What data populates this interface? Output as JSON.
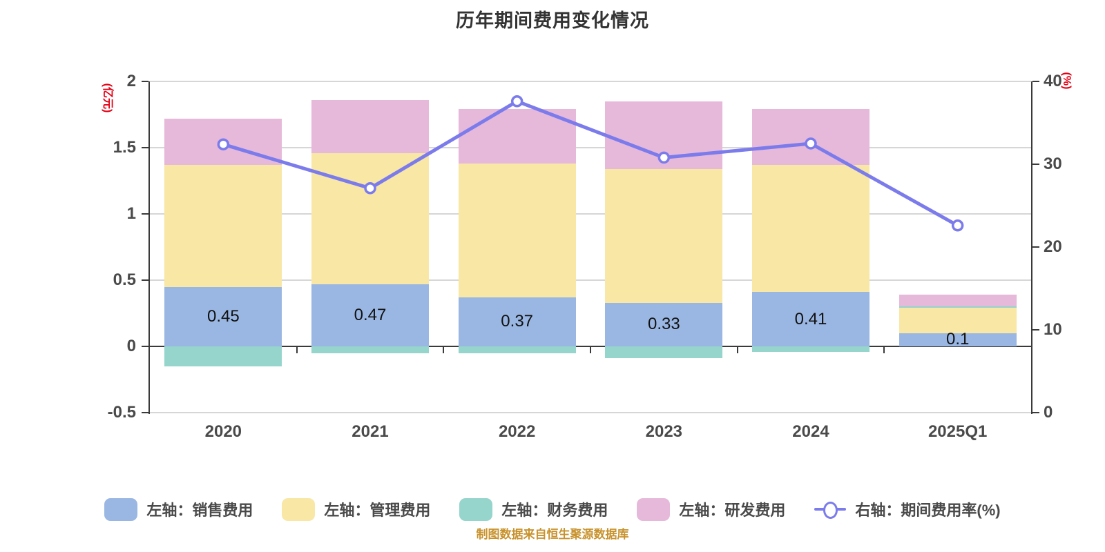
{
  "title": "历年期间费用变化情况",
  "source_note": "制图数据来自恒生聚源数据库",
  "left_axis": {
    "unit_label": "(亿元)",
    "min": -0.5,
    "max": 2,
    "ticks": [
      2,
      1.5,
      1,
      0.5,
      0,
      -0.5
    ],
    "tick_labels": [
      "2",
      "1.5",
      "1",
      "0.5",
      "0",
      "-0.5"
    ],
    "unit_color": "#e60014"
  },
  "right_axis": {
    "unit_label": "(%)",
    "min": 0,
    "max": 40,
    "ticks": [
      40,
      30,
      20,
      10,
      0
    ],
    "tick_labels": [
      "40",
      "30",
      "20",
      "10",
      "0"
    ],
    "unit_color": "#e60014"
  },
  "legend": [
    {
      "key": "sales_expense",
      "label": "左轴：销售费用",
      "marker": "bar",
      "color": "#9ab7e3"
    },
    {
      "key": "management_expense",
      "label": "左轴：管理费用",
      "marker": "bar",
      "color": "#f8e7a5"
    },
    {
      "key": "financial_expense",
      "label": "左轴：财务费用",
      "marker": "bar",
      "color": "#95d5cc"
    },
    {
      "key": "rd_expense",
      "label": "左轴：研发费用",
      "marker": "bar",
      "color": "#e6b8da"
    },
    {
      "key": "period_expense_rate",
      "label": "右轴：期间费用率(%)",
      "marker": "line",
      "color": "#7b7bec"
    }
  ],
  "chart_data": {
    "type": "bar",
    "subtype": "stacked-bar-with-line",
    "title": "历年期间费用变化情况",
    "categories": [
      "2020",
      "2021",
      "2022",
      "2023",
      "2024",
      "2025Q1"
    ],
    "bar_series": [
      {
        "key": "sales_expense",
        "name": "左轴：销售费用",
        "color": "#9ab7e3",
        "values": [
          0.45,
          0.47,
          0.37,
          0.33,
          0.41,
          0.1
        ],
        "labels": [
          "0.45",
          "0.47",
          "0.37",
          "0.33",
          "0.41",
          "0.1"
        ]
      },
      {
        "key": "management_expense",
        "name": "左轴：管理费用",
        "color": "#f8e7a5",
        "values": [
          0.92,
          0.99,
          1.01,
          1.01,
          0.96,
          0.19
        ]
      },
      {
        "key": "financial_expense",
        "name": "左轴：财务费用",
        "color": "#95d5cc",
        "values": [
          -0.15,
          -0.05,
          -0.05,
          -0.09,
          -0.04,
          0.01
        ]
      },
      {
        "key": "rd_expense",
        "name": "左轴：研发费用",
        "color": "#e6b8da",
        "values": [
          0.35,
          0.4,
          0.41,
          0.51,
          0.42,
          0.09
        ]
      }
    ],
    "line_series": {
      "key": "period_expense_rate",
      "name": "右轴：期间费用率(%)",
      "axis": "right",
      "color": "#7b7bec",
      "point_fill": "#ffffff",
      "values": [
        32.4,
        27.1,
        37.6,
        30.8,
        32.5,
        22.6
      ]
    },
    "ylim_left": [
      -0.5,
      2
    ],
    "ylim_right": [
      0,
      40
    ],
    "grid": true,
    "legend_position": "bottom"
  }
}
